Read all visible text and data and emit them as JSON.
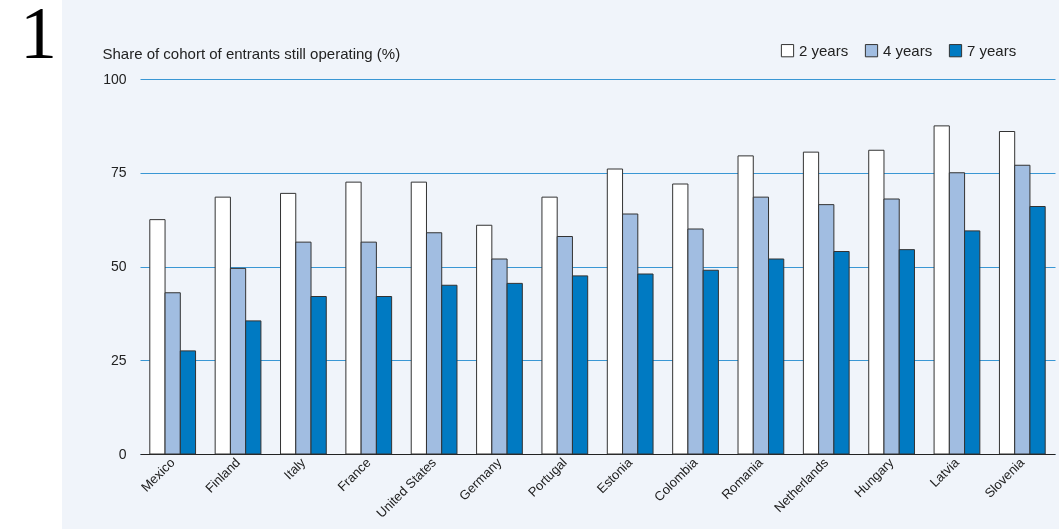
{
  "chart_data": {
    "type": "bar",
    "ylabel": "Share of cohort of entrants still operating (%)",
    "annotations": [
      "1"
    ],
    "categories": [
      "Mexico",
      "Finland",
      "Italy",
      "France",
      "United States",
      "Germany",
      "Portugal",
      "Estonia",
      "Colombia",
      "Romania",
      "Netherlands",
      "Hungary",
      "Latvia",
      "Slovenia"
    ],
    "series": [
      {
        "name": "2 years",
        "color": "#ffffff",
        "values": [
          62.5,
          68.5,
          69.5,
          72.5,
          72.5,
          61,
          68.5,
          76,
          72,
          79.5,
          80.5,
          81,
          87.5,
          86
        ]
      },
      {
        "name": "4 years",
        "color": "#a1bde1",
        "values": [
          43,
          49.5,
          56.5,
          56.5,
          59,
          52,
          58,
          64,
          60,
          68.5,
          66.5,
          68,
          75,
          77
        ]
      },
      {
        "name": "7 years",
        "color": "#007ac2",
        "values": [
          27.5,
          35.5,
          42,
          42,
          45,
          45.5,
          47.5,
          48,
          49,
          52,
          54,
          54.5,
          59.5,
          66
        ]
      }
    ],
    "ylim": [
      0,
      100
    ],
    "yticks": [
      0,
      25,
      50,
      75,
      100
    ],
    "grid": "y",
    "legend": "top right"
  }
}
